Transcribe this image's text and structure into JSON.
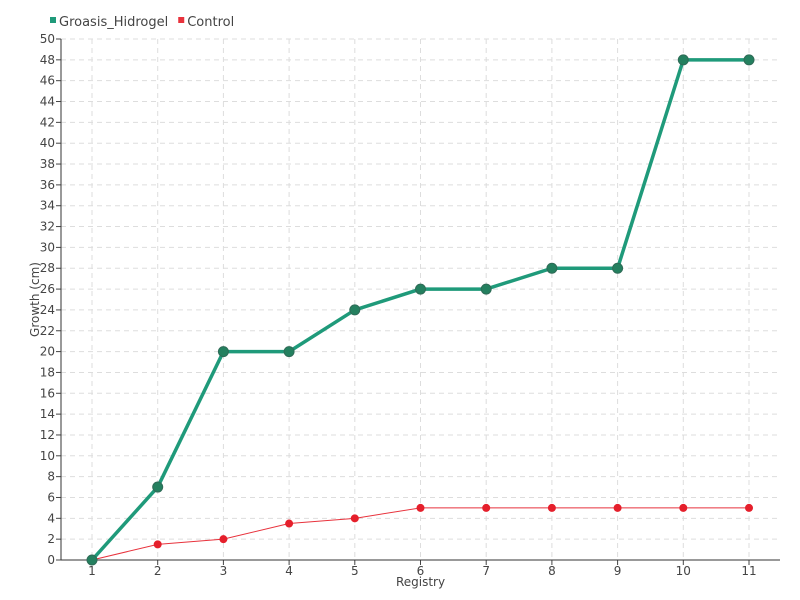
{
  "chart_data": {
    "type": "line",
    "title": "",
    "xlabel": "Registry",
    "ylabel": "Growth (cm)",
    "categories": [
      "1",
      "2",
      "3",
      "4",
      "5",
      "6",
      "7",
      "8",
      "9",
      "10",
      "11"
    ],
    "ylim": [
      0,
      50
    ],
    "ytick_step": 2,
    "grid": true,
    "legend_position": "top-left",
    "series": [
      {
        "name": "Groasis_Hidrogel",
        "color": "#1f9a7a",
        "marker_color": "#24805f",
        "values": [
          0,
          7,
          20,
          20,
          24,
          26,
          26,
          28,
          28,
          48,
          48
        ]
      },
      {
        "name": "Control",
        "color": "#e8323c",
        "marker_color": "#e51f2b",
        "values": [
          0,
          1.5,
          2,
          3.5,
          4,
          5,
          5,
          5,
          5,
          5,
          5
        ]
      }
    ]
  }
}
